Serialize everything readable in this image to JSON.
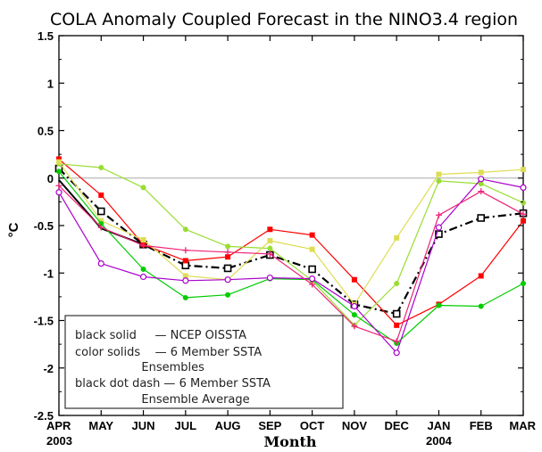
{
  "chart_data": {
    "type": "line",
    "title": "COLA Anomaly Coupled Forecast in the NINO3.4 region",
    "xlabel": "Month",
    "ylabel": "°C",
    "ylim": [
      -2.5,
      1.5
    ],
    "yticks": [
      "1.5",
      "1",
      "0.5",
      "0",
      "-0.5",
      "-1",
      "-1.5",
      "-2",
      "-2.5"
    ],
    "categories": [
      "APR",
      "MAY",
      "JUN",
      "JUL",
      "AUG",
      "SEP",
      "OCT",
      "NOV",
      "DEC",
      "JAN",
      "FEB",
      "MAR"
    ],
    "year_labels": [
      {
        "index": 0,
        "text": "2003"
      },
      {
        "index": 9,
        "text": "2004"
      }
    ],
    "zero_line": true,
    "grid": false,
    "legend": {
      "placement": "bottom-left",
      "lines": [
        "black solid     — NCEP OISSTA",
        "color solids    — 6 Member SSTA",
        "                  Ensembles",
        "black dot dash — 6 Member SSTA",
        "                  Ensemble Average"
      ]
    },
    "series": [
      {
        "color": "#000000",
        "style": "solid",
        "marker": "none",
        "values": [
          -0.02,
          -0.53,
          -0.7,
          null,
          null,
          null,
          null,
          null,
          null,
          null,
          null,
          null
        ]
      },
      {
        "color": "#000000",
        "style": "dashdot",
        "marker": "square",
        "values": [
          0.1,
          -0.35,
          -0.7,
          -0.92,
          -0.95,
          -0.81,
          -0.96,
          -1.33,
          -1.43,
          -0.59,
          -0.42,
          -0.37
        ]
      },
      {
        "color": "#ff0000",
        "style": "solid",
        "marker": "square",
        "values": [
          0.2,
          -0.18,
          -0.7,
          -0.87,
          -0.83,
          -0.54,
          -0.6,
          -1.07,
          -1.55,
          -1.33,
          -1.03,
          -0.45
        ]
      },
      {
        "color": "#99dd33",
        "style": "solid",
        "marker": "circle",
        "values": [
          0.15,
          0.11,
          -0.1,
          -0.54,
          -0.72,
          -0.74,
          -1.08,
          -1.55,
          -1.11,
          -0.03,
          -0.06,
          -0.26
        ]
      },
      {
        "color": "#dddd55",
        "style": "solid",
        "marker": "square",
        "values": [
          0.17,
          -0.45,
          -0.65,
          -1.03,
          -1.07,
          -0.66,
          -0.75,
          -1.33,
          -0.63,
          0.04,
          0.06,
          0.09
        ]
      },
      {
        "color": "#00cc00",
        "style": "solid",
        "marker": "circle",
        "values": [
          0.07,
          -0.48,
          -0.96,
          -1.26,
          -1.23,
          -1.06,
          -1.07,
          -1.44,
          -1.74,
          -1.34,
          -1.35,
          -1.11
        ]
      },
      {
        "color": "#aa00cc",
        "style": "solid",
        "marker": "circle",
        "values": [
          -0.15,
          -0.9,
          -1.04,
          -1.08,
          -1.07,
          -1.05,
          -1.06,
          -1.35,
          -1.84,
          -0.52,
          -0.01,
          -0.1
        ]
      },
      {
        "color": "#ee2277",
        "style": "solid",
        "marker": "plus",
        "values": [
          -0.08,
          -0.52,
          -0.71,
          -0.76,
          -0.78,
          -0.8,
          -1.12,
          -1.56,
          -1.72,
          -0.39,
          -0.14,
          -0.38
        ]
      }
    ]
  }
}
